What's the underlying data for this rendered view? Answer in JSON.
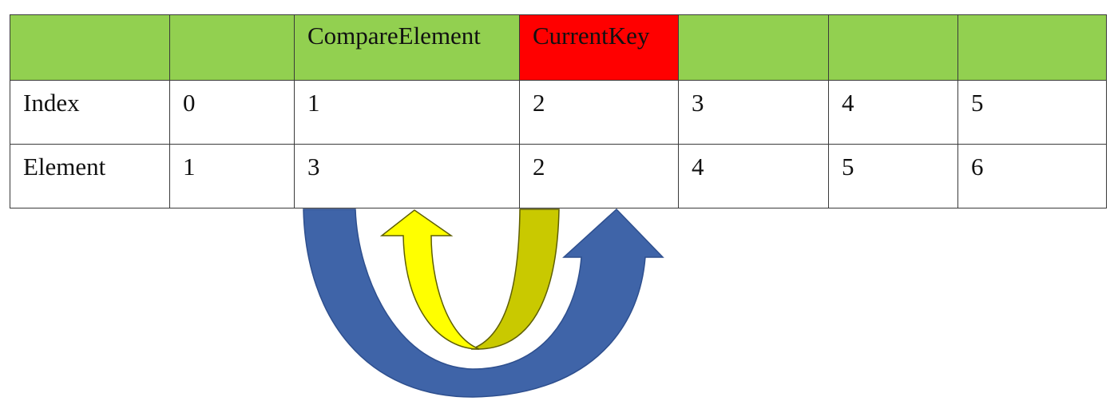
{
  "colors": {
    "header_bg": "#92d050",
    "current_key_bg": "#ff0000",
    "body_bg": "#ffffff",
    "blue_arrow": "#3f64a8",
    "yellow_arrow": "#ffff00",
    "olive_arrow": "#c9c900"
  },
  "header": {
    "cells": [
      "",
      "",
      "CompareElement",
      "CurrentKey",
      "",
      "",
      ""
    ],
    "highlight_index": 3
  },
  "rows": [
    {
      "label": "Index",
      "values": [
        "0",
        "1",
        "2",
        "3",
        "4",
        "5"
      ]
    },
    {
      "label": "Element",
      "values": [
        "1",
        "3",
        "2",
        "4",
        "5",
        "6"
      ]
    }
  ],
  "arrows": [
    {
      "name": "swap-arrow-outer",
      "color": "blue"
    },
    {
      "name": "swap-arrow-inner",
      "color": "yellow"
    }
  ]
}
